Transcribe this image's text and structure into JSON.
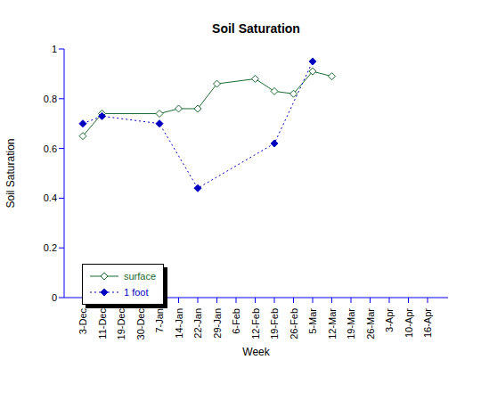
{
  "chart_data": {
    "type": "line",
    "title": "Soil Saturation",
    "x_label": "Week",
    "y_label": "Soil Saturation",
    "categories": [
      "3-Dec",
      "11-Dec",
      "19-Dec",
      "30-Dec",
      "7-Jan",
      "14-Jan",
      "22-Jan",
      "29-Jan",
      "6-Feb",
      "12-Feb",
      "19-Feb",
      "26-Feb",
      "5-Mar",
      "12-Mar",
      "19-Mar",
      "26-Mar",
      "3-Apr",
      "10-Apr",
      "16-Apr"
    ],
    "series": [
      {
        "name": "surface",
        "color": "#1a6b2e",
        "marker": "open_diamond",
        "line_style": "solid",
        "values": [
          0.65,
          0.74,
          null,
          null,
          0.74,
          0.76,
          0.76,
          0.86,
          null,
          0.88,
          0.83,
          0.82,
          0.91,
          0.89,
          null,
          null,
          null,
          null,
          null
        ]
      },
      {
        "name": "1 foot",
        "color": "#0000c0",
        "marker": "diamond",
        "line_style": "dotted",
        "values": [
          0.7,
          0.73,
          null,
          null,
          0.7,
          null,
          0.44,
          null,
          null,
          null,
          0.62,
          null,
          0.95,
          null,
          null,
          null,
          null,
          null,
          null
        ]
      }
    ],
    "ylim": [
      0,
      1
    ],
    "yticks": [
      0,
      0.2,
      0.4,
      0.6,
      0.8,
      1
    ],
    "grid": false,
    "legend": "lower left"
  }
}
